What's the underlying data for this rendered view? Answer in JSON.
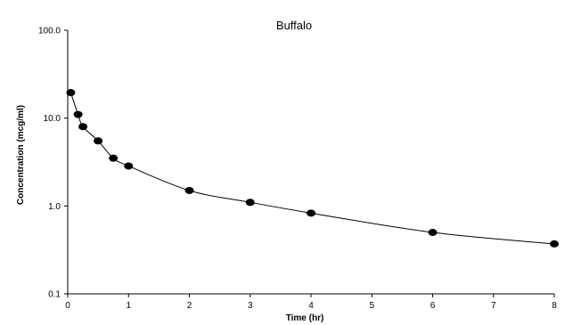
{
  "chart_data": {
    "type": "scatter",
    "title": "Buffalo",
    "xlabel": "Time (hr)",
    "ylabel": "Concentration (mcg/ml)",
    "xlim": [
      0,
      8
    ],
    "ylim": [
      0.1,
      100
    ],
    "y_scale": "log",
    "x_ticks": [
      0,
      1,
      2,
      3,
      4,
      5,
      6,
      7,
      8
    ],
    "x_tick_labels": [
      "0",
      "1",
      "2",
      "3",
      "4",
      "5",
      "6",
      "7",
      "8"
    ],
    "y_ticks": [
      0.1,
      1,
      10,
      100
    ],
    "y_tick_labels": [
      "0.1",
      "1.0",
      "10.0",
      "100.0"
    ],
    "grid": false,
    "legend": "none",
    "series": [
      {
        "points": [
          {
            "x": 0.05,
            "y": 19.5
          },
          {
            "x": 0.17,
            "y": 11.0
          },
          {
            "x": 0.25,
            "y": 8.0
          },
          {
            "x": 0.5,
            "y": 5.5
          },
          {
            "x": 0.75,
            "y": 3.5
          },
          {
            "x": 1.0,
            "y": 2.85
          },
          {
            "x": 2.0,
            "y": 1.5
          },
          {
            "x": 3.0,
            "y": 1.1
          },
          {
            "x": 4.0,
            "y": 0.83
          },
          {
            "x": 6.0,
            "y": 0.5
          },
          {
            "x": 8.0,
            "y": 0.37
          }
        ],
        "fitted_curve": true
      }
    ]
  }
}
